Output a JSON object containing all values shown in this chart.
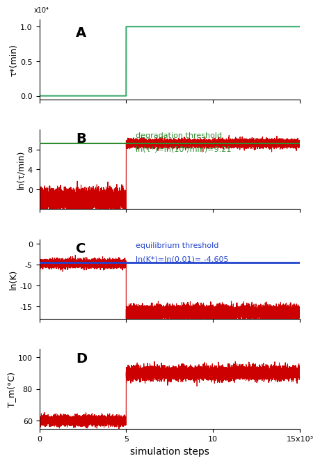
{
  "total_steps": 15000,
  "transition_point": 5000,
  "panel_A": {
    "label": "A",
    "ylabel": "τ*(min)",
    "y_before": 0.0,
    "y_after": 10000.0,
    "ylim": [
      -500,
      11000
    ],
    "yticks": [
      0,
      5000,
      10000
    ],
    "ytick_labels": [
      "0.0",
      "0.5",
      "1.0"
    ],
    "color": "#3aaa6e",
    "line_width": 1.5
  },
  "panel_B": {
    "label": "B",
    "ylabel": "ln(τ/min)",
    "y_before_base": -2.0,
    "y_after_base": 9.21,
    "noise_before": 1.0,
    "noise_after": 0.4,
    "ylim": [
      -4,
      12
    ],
    "yticks": [
      0,
      4,
      8
    ],
    "threshold": 9.21,
    "threshold_label": "degradation threshold",
    "threshold_formula": "ln(τ*)=ln(10⁴/min)=9.21",
    "threshold_color": "#2e8b2e",
    "data_color": "#cc0000",
    "line_width": 0.8
  },
  "panel_C": {
    "label": "C",
    "ylabel": "ln(K)",
    "y_before_base": -4.8,
    "y_after_base": -16.5,
    "noise_before": 0.5,
    "noise_after": 0.8,
    "ylim": [
      -18,
      1
    ],
    "yticks": [
      0,
      -5,
      -10,
      -15
    ],
    "threshold": -4.605,
    "threshold_label": "equilibrium threshold",
    "threshold_formula": "ln(K*)=ln(0.01)= -4.605",
    "threshold_color": "#2244cc",
    "data_color": "#cc0000",
    "line_width": 0.8
  },
  "panel_D": {
    "label": "D",
    "ylabel": "T_m(°C)",
    "y_before_base": 60.0,
    "y_after_base": 90.0,
    "noise_before": 1.5,
    "noise_after": 2.0,
    "ylim": [
      55,
      105
    ],
    "yticks": [
      60,
      80,
      100
    ],
    "data_color": "#cc0000",
    "line_width": 0.8
  },
  "xlabel": "simulation steps",
  "xticks": [
    0,
    5000,
    10000,
    15000
  ],
  "xtick_labels": [
    "0",
    "5",
    "10",
    "15x10³"
  ],
  "bg_color": "#ffffff"
}
